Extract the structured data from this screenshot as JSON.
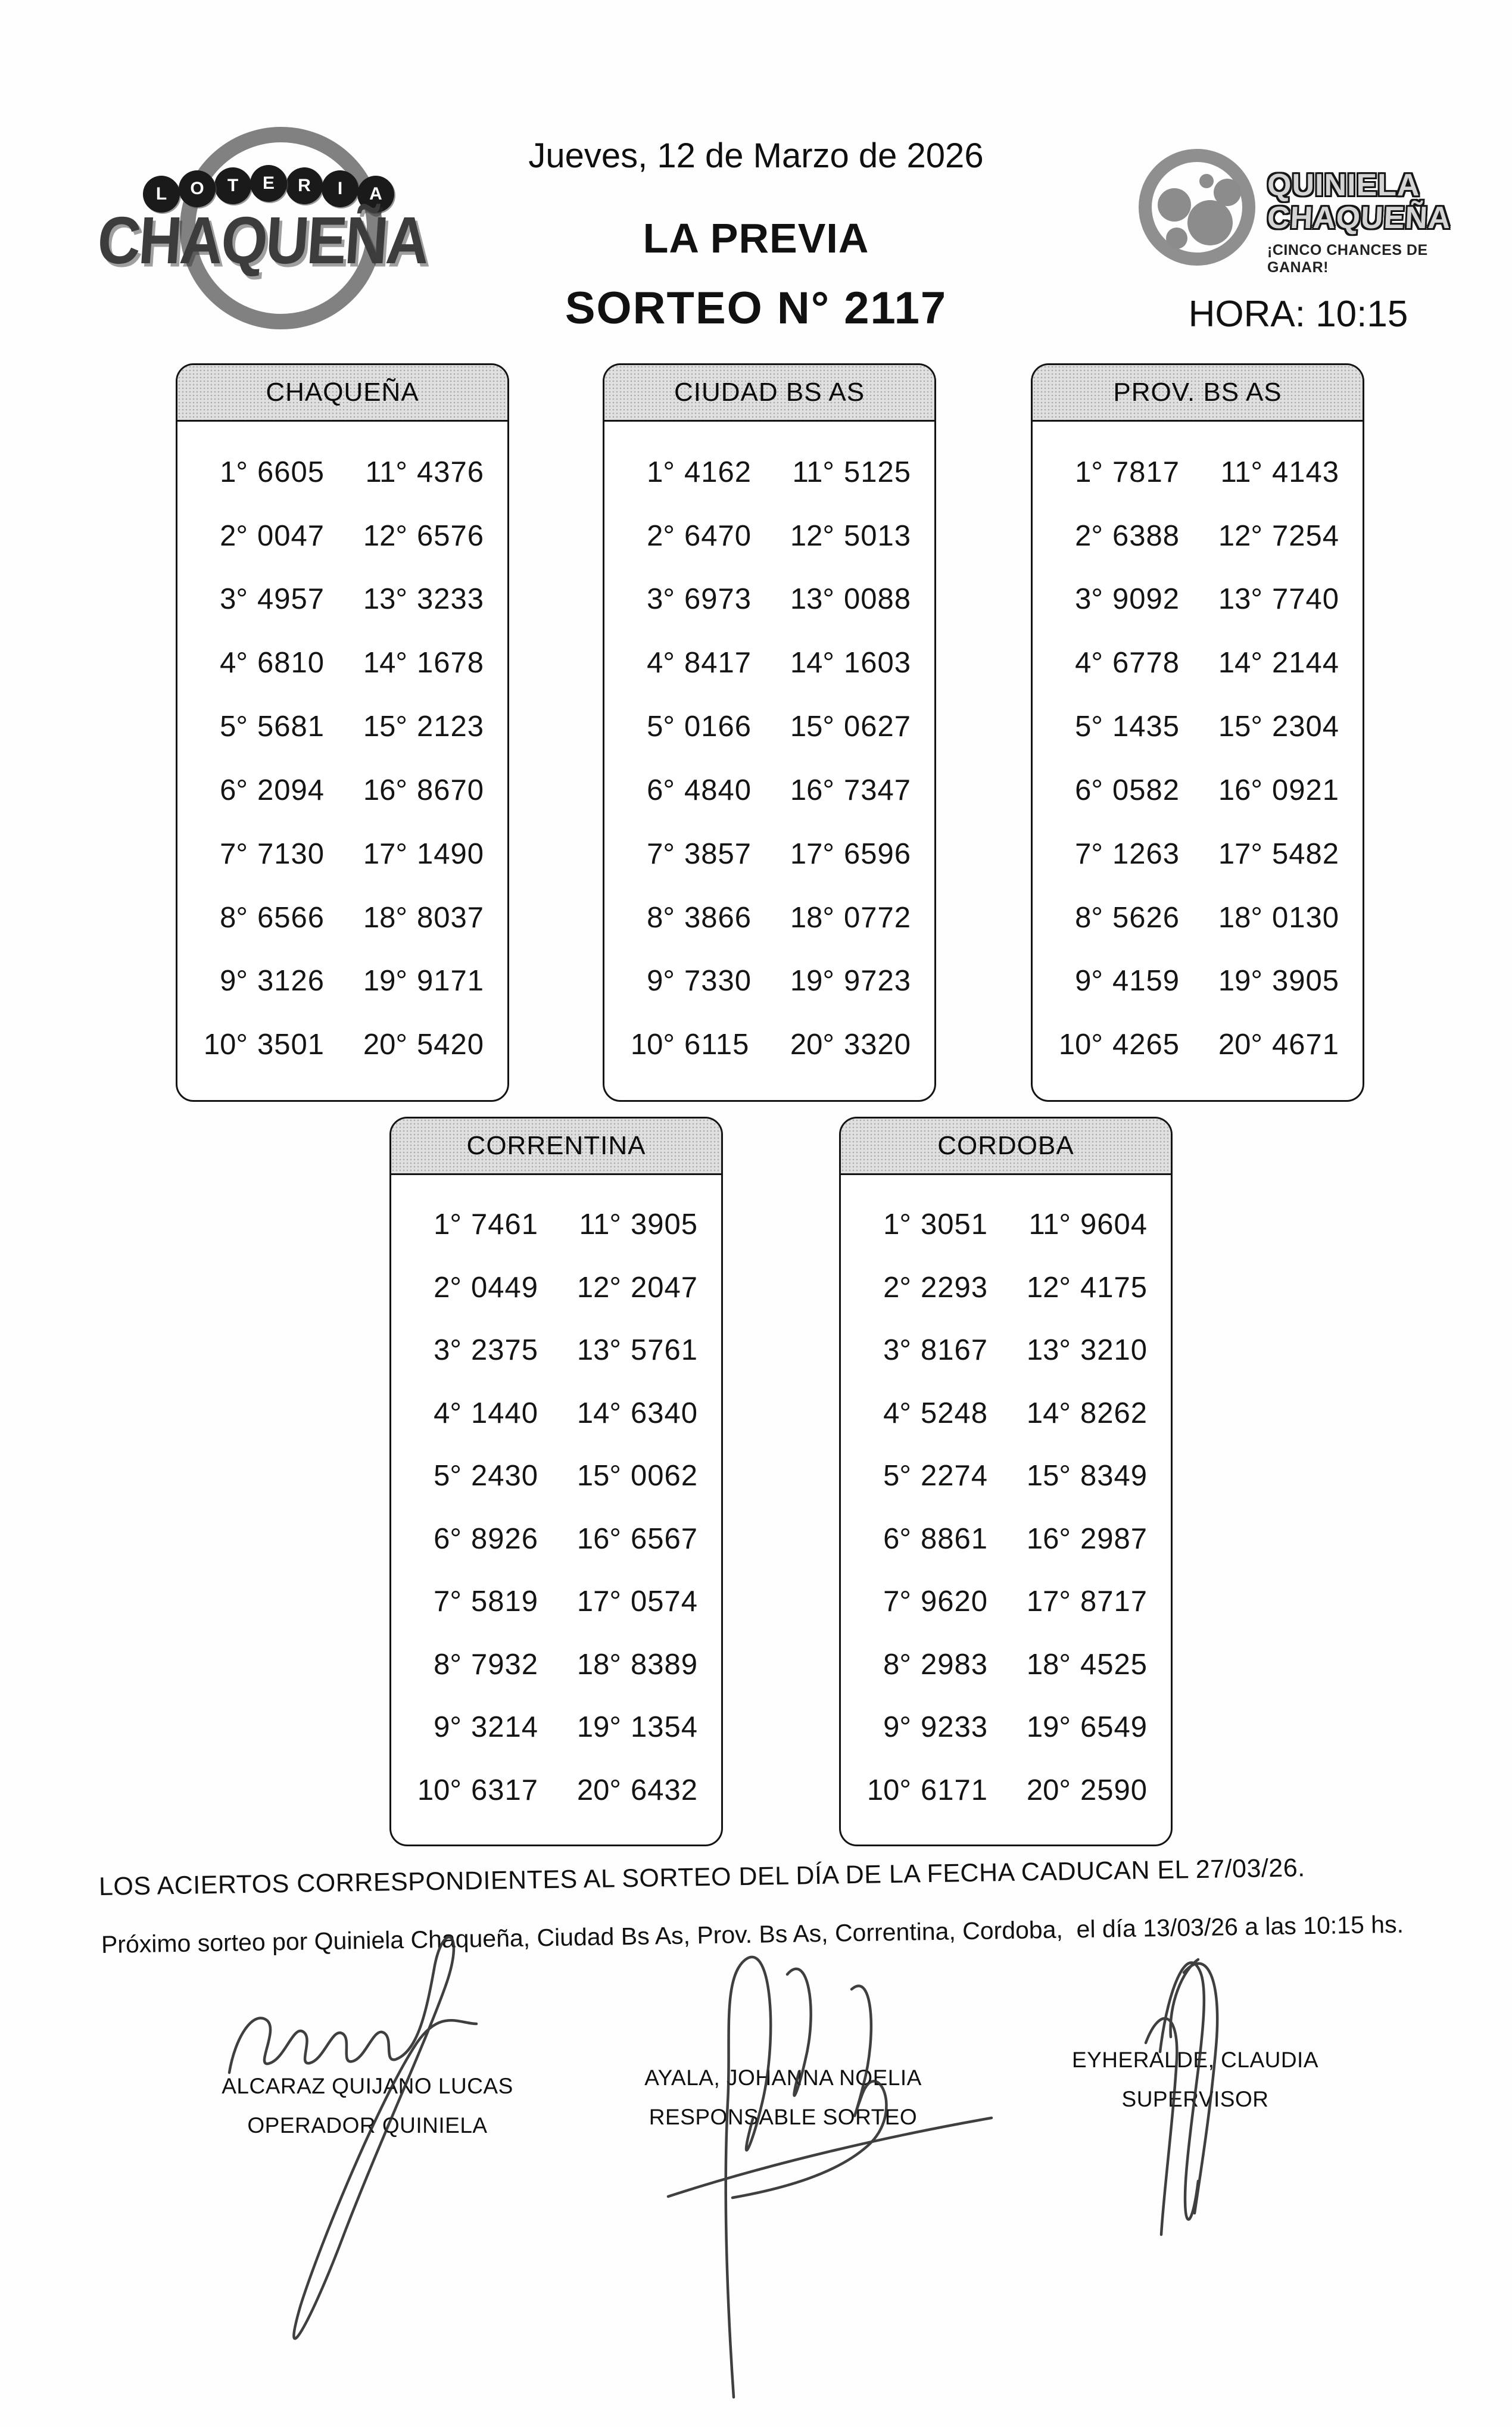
{
  "header": {
    "date": "Jueves, 12 de Marzo de 2026",
    "event_title": "LA PREVIA",
    "draw_title": "SORTEO N° 2117",
    "time_label": "HORA: 10:15",
    "left_logo": {
      "top_word": "LOTERIA",
      "letters": [
        "L",
        "O",
        "T",
        "E",
        "R",
        "I",
        "A"
      ],
      "bottom_word": "CHAQUEÑA"
    },
    "right_logo": {
      "line1": "QUINIELA",
      "line2": "CHAQUEÑA",
      "tagline": "¡CINCO CHANCES DE GANAR!"
    }
  },
  "tables": [
    {
      "title": "CHAQUEÑA",
      "rows": [
        [
          "1°",
          "6605",
          "11°",
          "4376"
        ],
        [
          "2°",
          "0047",
          "12°",
          "6576"
        ],
        [
          "3°",
          "4957",
          "13°",
          "3233"
        ],
        [
          "4°",
          "6810",
          "14°",
          "1678"
        ],
        [
          "5°",
          "5681",
          "15°",
          "2123"
        ],
        [
          "6°",
          "2094",
          "16°",
          "8670"
        ],
        [
          "7°",
          "7130",
          "17°",
          "1490"
        ],
        [
          "8°",
          "6566",
          "18°",
          "8037"
        ],
        [
          "9°",
          "3126",
          "19°",
          "9171"
        ],
        [
          "10°",
          "3501",
          "20°",
          "5420"
        ]
      ]
    },
    {
      "title": "CIUDAD BS AS",
      "rows": [
        [
          "1°",
          "4162",
          "11°",
          "5125"
        ],
        [
          "2°",
          "6470",
          "12°",
          "5013"
        ],
        [
          "3°",
          "6973",
          "13°",
          "0088"
        ],
        [
          "4°",
          "8417",
          "14°",
          "1603"
        ],
        [
          "5°",
          "0166",
          "15°",
          "0627"
        ],
        [
          "6°",
          "4840",
          "16°",
          "7347"
        ],
        [
          "7°",
          "3857",
          "17°",
          "6596"
        ],
        [
          "8°",
          "3866",
          "18°",
          "0772"
        ],
        [
          "9°",
          "7330",
          "19°",
          "9723"
        ],
        [
          "10°",
          "6115",
          "20°",
          "3320"
        ]
      ]
    },
    {
      "title": "PROV. BS AS",
      "rows": [
        [
          "1°",
          "7817",
          "11°",
          "4143"
        ],
        [
          "2°",
          "6388",
          "12°",
          "7254"
        ],
        [
          "3°",
          "9092",
          "13°",
          "7740"
        ],
        [
          "4°",
          "6778",
          "14°",
          "2144"
        ],
        [
          "5°",
          "1435",
          "15°",
          "2304"
        ],
        [
          "6°",
          "0582",
          "16°",
          "0921"
        ],
        [
          "7°",
          "1263",
          "17°",
          "5482"
        ],
        [
          "8°",
          "5626",
          "18°",
          "0130"
        ],
        [
          "9°",
          "4159",
          "19°",
          "3905"
        ],
        [
          "10°",
          "4265",
          "20°",
          "4671"
        ]
      ]
    },
    {
      "title": "CORRENTINA",
      "rows": [
        [
          "1°",
          "7461",
          "11°",
          "3905"
        ],
        [
          "2°",
          "0449",
          "12°",
          "2047"
        ],
        [
          "3°",
          "2375",
          "13°",
          "5761"
        ],
        [
          "4°",
          "1440",
          "14°",
          "6340"
        ],
        [
          "5°",
          "2430",
          "15°",
          "0062"
        ],
        [
          "6°",
          "8926",
          "16°",
          "6567"
        ],
        [
          "7°",
          "5819",
          "17°",
          "0574"
        ],
        [
          "8°",
          "7932",
          "18°",
          "8389"
        ],
        [
          "9°",
          "3214",
          "19°",
          "1354"
        ],
        [
          "10°",
          "6317",
          "20°",
          "6432"
        ]
      ]
    },
    {
      "title": "CORDOBA",
      "rows": [
        [
          "1°",
          "3051",
          "11°",
          "9604"
        ],
        [
          "2°",
          "2293",
          "12°",
          "4175"
        ],
        [
          "3°",
          "8167",
          "13°",
          "3210"
        ],
        [
          "4°",
          "5248",
          "14°",
          "8262"
        ],
        [
          "5°",
          "2274",
          "15°",
          "8349"
        ],
        [
          "6°",
          "8861",
          "16°",
          "2987"
        ],
        [
          "7°",
          "9620",
          "17°",
          "8717"
        ],
        [
          "8°",
          "2983",
          "18°",
          "4525"
        ],
        [
          "9°",
          "9233",
          "19°",
          "6549"
        ],
        [
          "10°",
          "6171",
          "20°",
          "2590"
        ]
      ]
    }
  ],
  "footer": {
    "expiry_notice": "LOS ACIERTOS CORRESPONDIENTES AL SORTEO DEL DÍA DE LA FECHA CADUCAN EL 27/03/26.",
    "next_draw_notice": "Próximo sorteo por Quiniela Chaqueña, Ciudad Bs As, Prov. Bs As, Correntina, Cordoba,  el día 13/03/26 a las 10:15 hs."
  },
  "signatures": [
    {
      "name": "ALCARAZ QUIJANO LUCAS",
      "role": "OPERADOR QUINIELA"
    },
    {
      "name": "AYALA, JOHANNA NOELIA",
      "role": "RESPONSABLE SORTEO"
    },
    {
      "name": "EYHERALDE, CLAUDIA",
      "role": "SUPERVISOR"
    }
  ]
}
